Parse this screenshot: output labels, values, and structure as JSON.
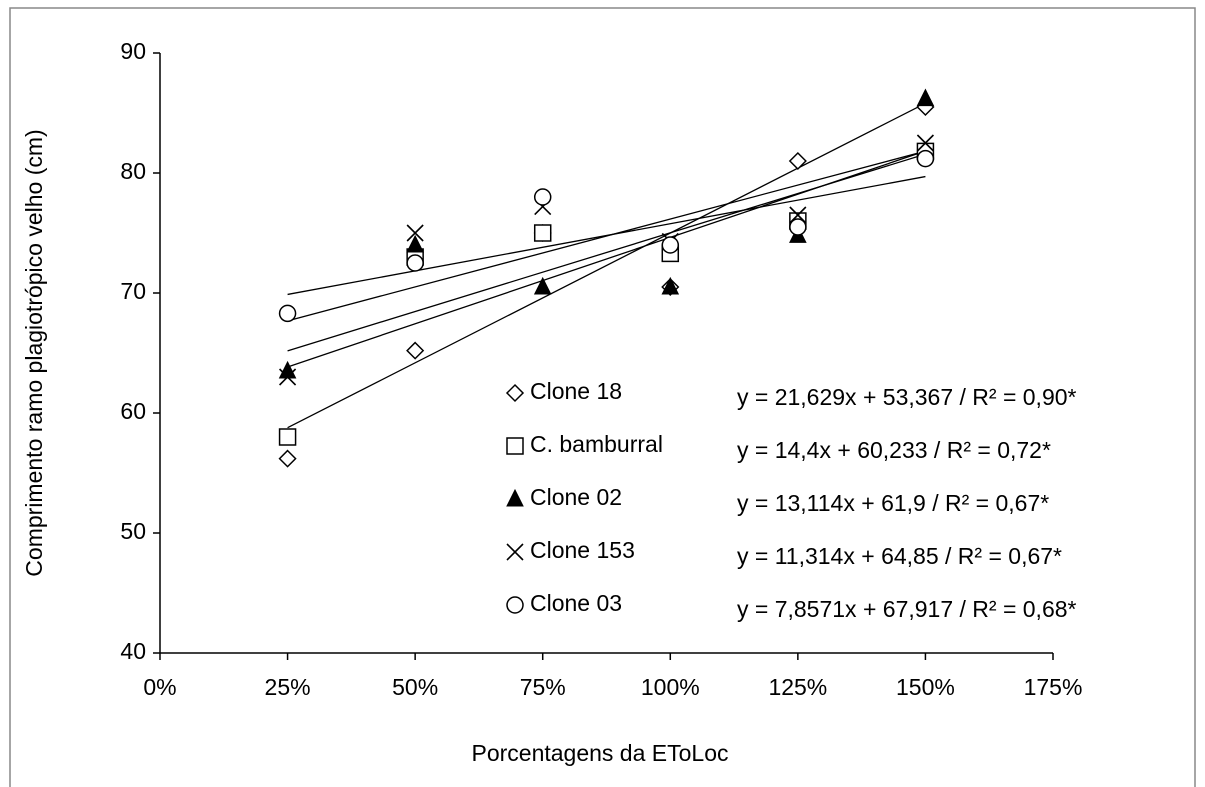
{
  "chart_data": {
    "type": "scatter",
    "x_label": "Porcentagens da EToLoc",
    "y_label": "Comprimento ramo plagiotrópico velho (cm)",
    "x": [
      0.25,
      0.5,
      0.75,
      1.0,
      1.25,
      1.5
    ],
    "xlim": [
      0,
      1.75
    ],
    "xticks": [
      {
        "value": 0,
        "label": "0%"
      },
      {
        "value": 0.25,
        "label": "25%"
      },
      {
        "value": 0.5,
        "label": "50%"
      },
      {
        "value": 0.75,
        "label": "75%"
      },
      {
        "value": 1.0,
        "label": "100%"
      },
      {
        "value": 1.25,
        "label": "125%"
      },
      {
        "value": 1.5,
        "label": "150%"
      },
      {
        "value": 1.75,
        "label": "175%"
      }
    ],
    "ylim": [
      40,
      90
    ],
    "yticks": [
      40,
      50,
      60,
      70,
      80,
      90
    ],
    "grid": false,
    "series": [
      {
        "name": "Clone 18",
        "color": "#000000",
        "marker": "diamond",
        "values": [
          56.2,
          65.2,
          75.0,
          70.5,
          81.0,
          85.5
        ],
        "trendline": {
          "slope": 21.629,
          "intercept": 53.367,
          "equation": "y = 21,629x + 53,367 / R² = 0,90*"
        }
      },
      {
        "name": "C. bamburral",
        "color": "#000000",
        "marker": "square",
        "values": [
          58.0,
          73.0,
          75.0,
          73.3,
          76.0,
          81.8
        ],
        "trendline": {
          "slope": 14.4,
          "intercept": 60.233,
          "equation": "y = 14,4x + 60,233 / R² = 0,72*"
        }
      },
      {
        "name": "Clone 02",
        "color": "#000000",
        "marker": "triangle",
        "values": [
          63.5,
          74.0,
          70.5,
          70.5,
          74.8,
          86.2
        ],
        "trendline": {
          "slope": 13.114,
          "intercept": 61.9,
          "equation": "y = 13,114x + 61,9 / R² = 0,67*"
        }
      },
      {
        "name": "Clone 153",
        "color": "#000000",
        "marker": "cross",
        "values": [
          63.0,
          75.0,
          77.2,
          74.3,
          76.5,
          82.5
        ],
        "trendline": {
          "slope": 11.314,
          "intercept": 64.85,
          "equation": "y = 11,314x + 64,85 / R² = 0,67*"
        }
      },
      {
        "name": "Clone 03",
        "color": "#000000",
        "marker": "circle",
        "values": [
          68.3,
          72.5,
          78.0,
          74.0,
          75.5,
          81.2
        ],
        "trendline": {
          "slope": 7.8571,
          "intercept": 67.917,
          "equation": "y = 7,8571x + 67,917 / R² = 0,68*"
        }
      }
    ]
  }
}
